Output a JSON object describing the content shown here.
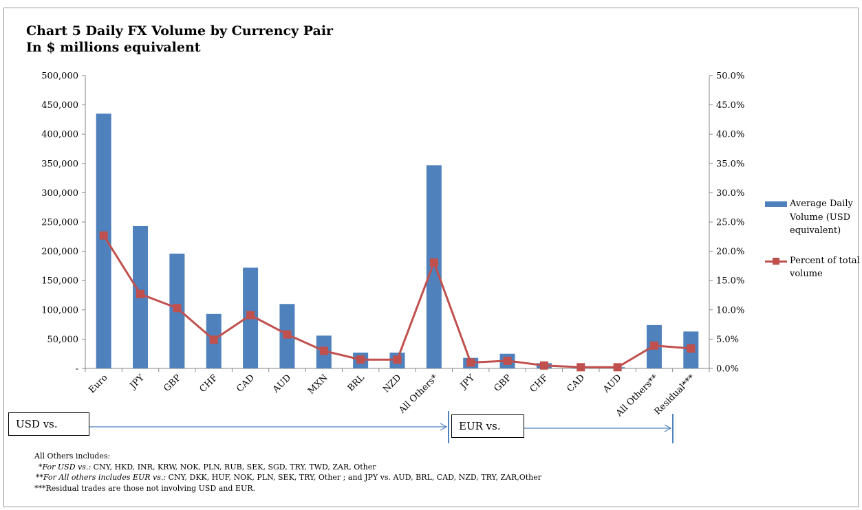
{
  "title": {
    "line1": "Chart 5 Daily FX Volume by Currency Pair",
    "line2": "In $ millions equivalent"
  },
  "chart_data": {
    "type": "bar",
    "categories": [
      "Euro",
      "JPY",
      "GBP",
      "CHF",
      "CAD",
      "AUD",
      "MXN",
      "BRL",
      "NZD",
      "All Others*",
      "JPY",
      "GBP",
      "CHF",
      "CAD",
      "AUD",
      "All Others**",
      "Residual***"
    ],
    "series": [
      {
        "name": "Average Daily Volume (USD equivalent)",
        "type": "bar",
        "axis": "left",
        "color": "#4f81bd",
        "values": [
          435000,
          243000,
          196000,
          93000,
          172000,
          110000,
          56000,
          27000,
          27000,
          347000,
          18000,
          25000,
          9000,
          2000,
          2000,
          74000,
          63000
        ]
      },
      {
        "name": "Percent of total volume",
        "type": "line",
        "axis": "right",
        "color": "#c0504d",
        "values": [
          22.7,
          12.7,
          10.3,
          4.9,
          9.1,
          5.8,
          3.0,
          1.5,
          1.5,
          18.1,
          1.0,
          1.3,
          0.5,
          0.2,
          0.2,
          3.9,
          3.4
        ]
      }
    ],
    "y_left": {
      "lim": [
        0,
        500000
      ],
      "ticks": [
        0,
        50000,
        100000,
        150000,
        200000,
        250000,
        300000,
        350000,
        400000,
        450000,
        500000
      ],
      "tick_labels": [
        "-",
        "50,000",
        "100,000",
        "150,000",
        "200,000",
        "250,000",
        "300,000",
        "350,000",
        "400,000",
        "450,000",
        "500,000"
      ]
    },
    "y_right": {
      "lim": [
        0,
        50
      ],
      "ticks": [
        0,
        5,
        10,
        15,
        20,
        25,
        30,
        35,
        40,
        45,
        50
      ],
      "tick_labels": [
        "0.0%",
        "5.0%",
        "10.0%",
        "15.0%",
        "20.0%",
        "25.0%",
        "30.0%",
        "35.0%",
        "40.0%",
        "45.0%",
        "50.0%"
      ]
    },
    "grid": false,
    "legend_placement": "right",
    "groups": [
      {
        "label": "USD vs.",
        "start": 0,
        "end": 9
      },
      {
        "label": "EUR vs.",
        "start": 10,
        "end": 16
      }
    ]
  },
  "legend": {
    "bar_label": "Average Daily Volume (USD equivalent)",
    "line_label": "Percent of total volume"
  },
  "notes": {
    "line1": "All Others includes:",
    "line2_prefix": "*For USD vs.:",
    "line2_text": " CNY, HKD, INR, KRW, NOK, PLN, RUB, SEK, SGD, TRY, TWD, ZAR, Other",
    "line3_prefix": "**For All others includes EUR vs.:",
    "line3_text": " CNY, DKK, HUF, NOK, PLN, SEK, TRY, Other ; and JPY vs. AUD, BRL, CAD, NZD, TRY, ZAR,Other",
    "line4": "***Residual trades are those not involving USD and EUR."
  }
}
